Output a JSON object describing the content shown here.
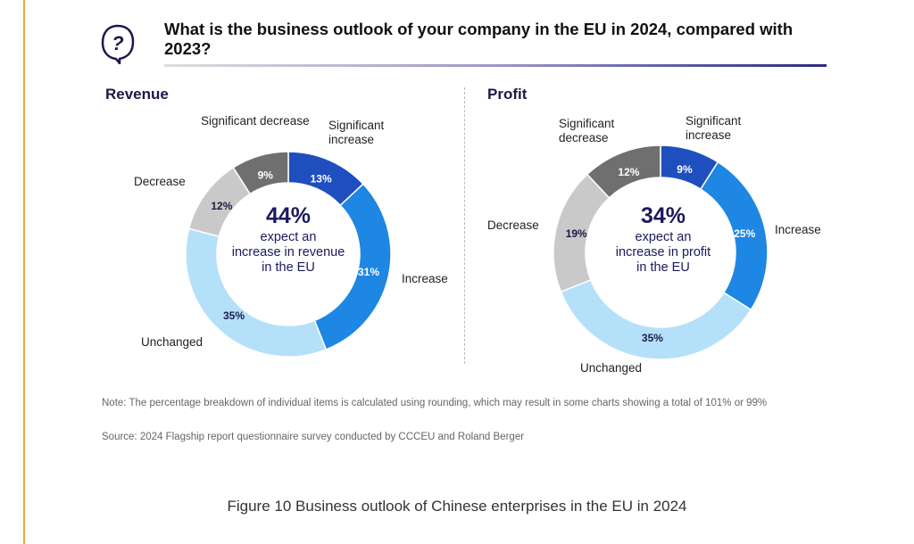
{
  "question": "What is the business outlook of your company in the EU in 2024, compared with 2023?",
  "note": "Note: The percentage breakdown of individual items is calculated using rounding, which may result in some charts showing a total of 101% or 99%",
  "source": "Source: 2024 Flagship report questionnaire survey conducted by CCCEU and Roland Berger",
  "caption": "Figure 10 Business outlook of Chinese enterprises in the EU in 2024",
  "colors": {
    "significant_increase": "#1f4fbf",
    "increase": "#1e86e3",
    "unchanged": "#b5e0fa",
    "decrease": "#c9c9c9",
    "significant_decrease": "#6f6f6f"
  },
  "chart_data": [
    {
      "type": "pie",
      "variant": "donut",
      "title": "Revenue",
      "categories": [
        "Significant increase",
        "Increase",
        "Unchanged",
        "Decrease",
        "Significant decrease"
      ],
      "values": [
        13,
        31,
        35,
        12,
        9
      ],
      "data_labels": [
        "13%",
        "31%",
        "35%",
        "12%",
        "9%"
      ],
      "center": {
        "value": "44%",
        "text_lines": [
          "expect an",
          "increase in revenue",
          "in the EU"
        ]
      }
    },
    {
      "type": "pie",
      "variant": "donut",
      "title": "Profit",
      "categories": [
        "Significant increase",
        "Increase",
        "Unchanged",
        "Decrease",
        "Significant decrease"
      ],
      "values": [
        9,
        25,
        35,
        19,
        12
      ],
      "data_labels": [
        "9%",
        "25%",
        "35%",
        "19%",
        "12%"
      ],
      "center": {
        "value": "34%",
        "text_lines": [
          "expect an",
          "increase in profit",
          "in the EU"
        ]
      }
    }
  ],
  "labels": {
    "revenue": [
      "Significant increase",
      "Increase",
      "Unchanged",
      "Decrease",
      "Significant decrease"
    ],
    "profit": [
      "Significant increase",
      "Increase",
      "Unchanged",
      "Decrease",
      "Significant decrease"
    ]
  }
}
